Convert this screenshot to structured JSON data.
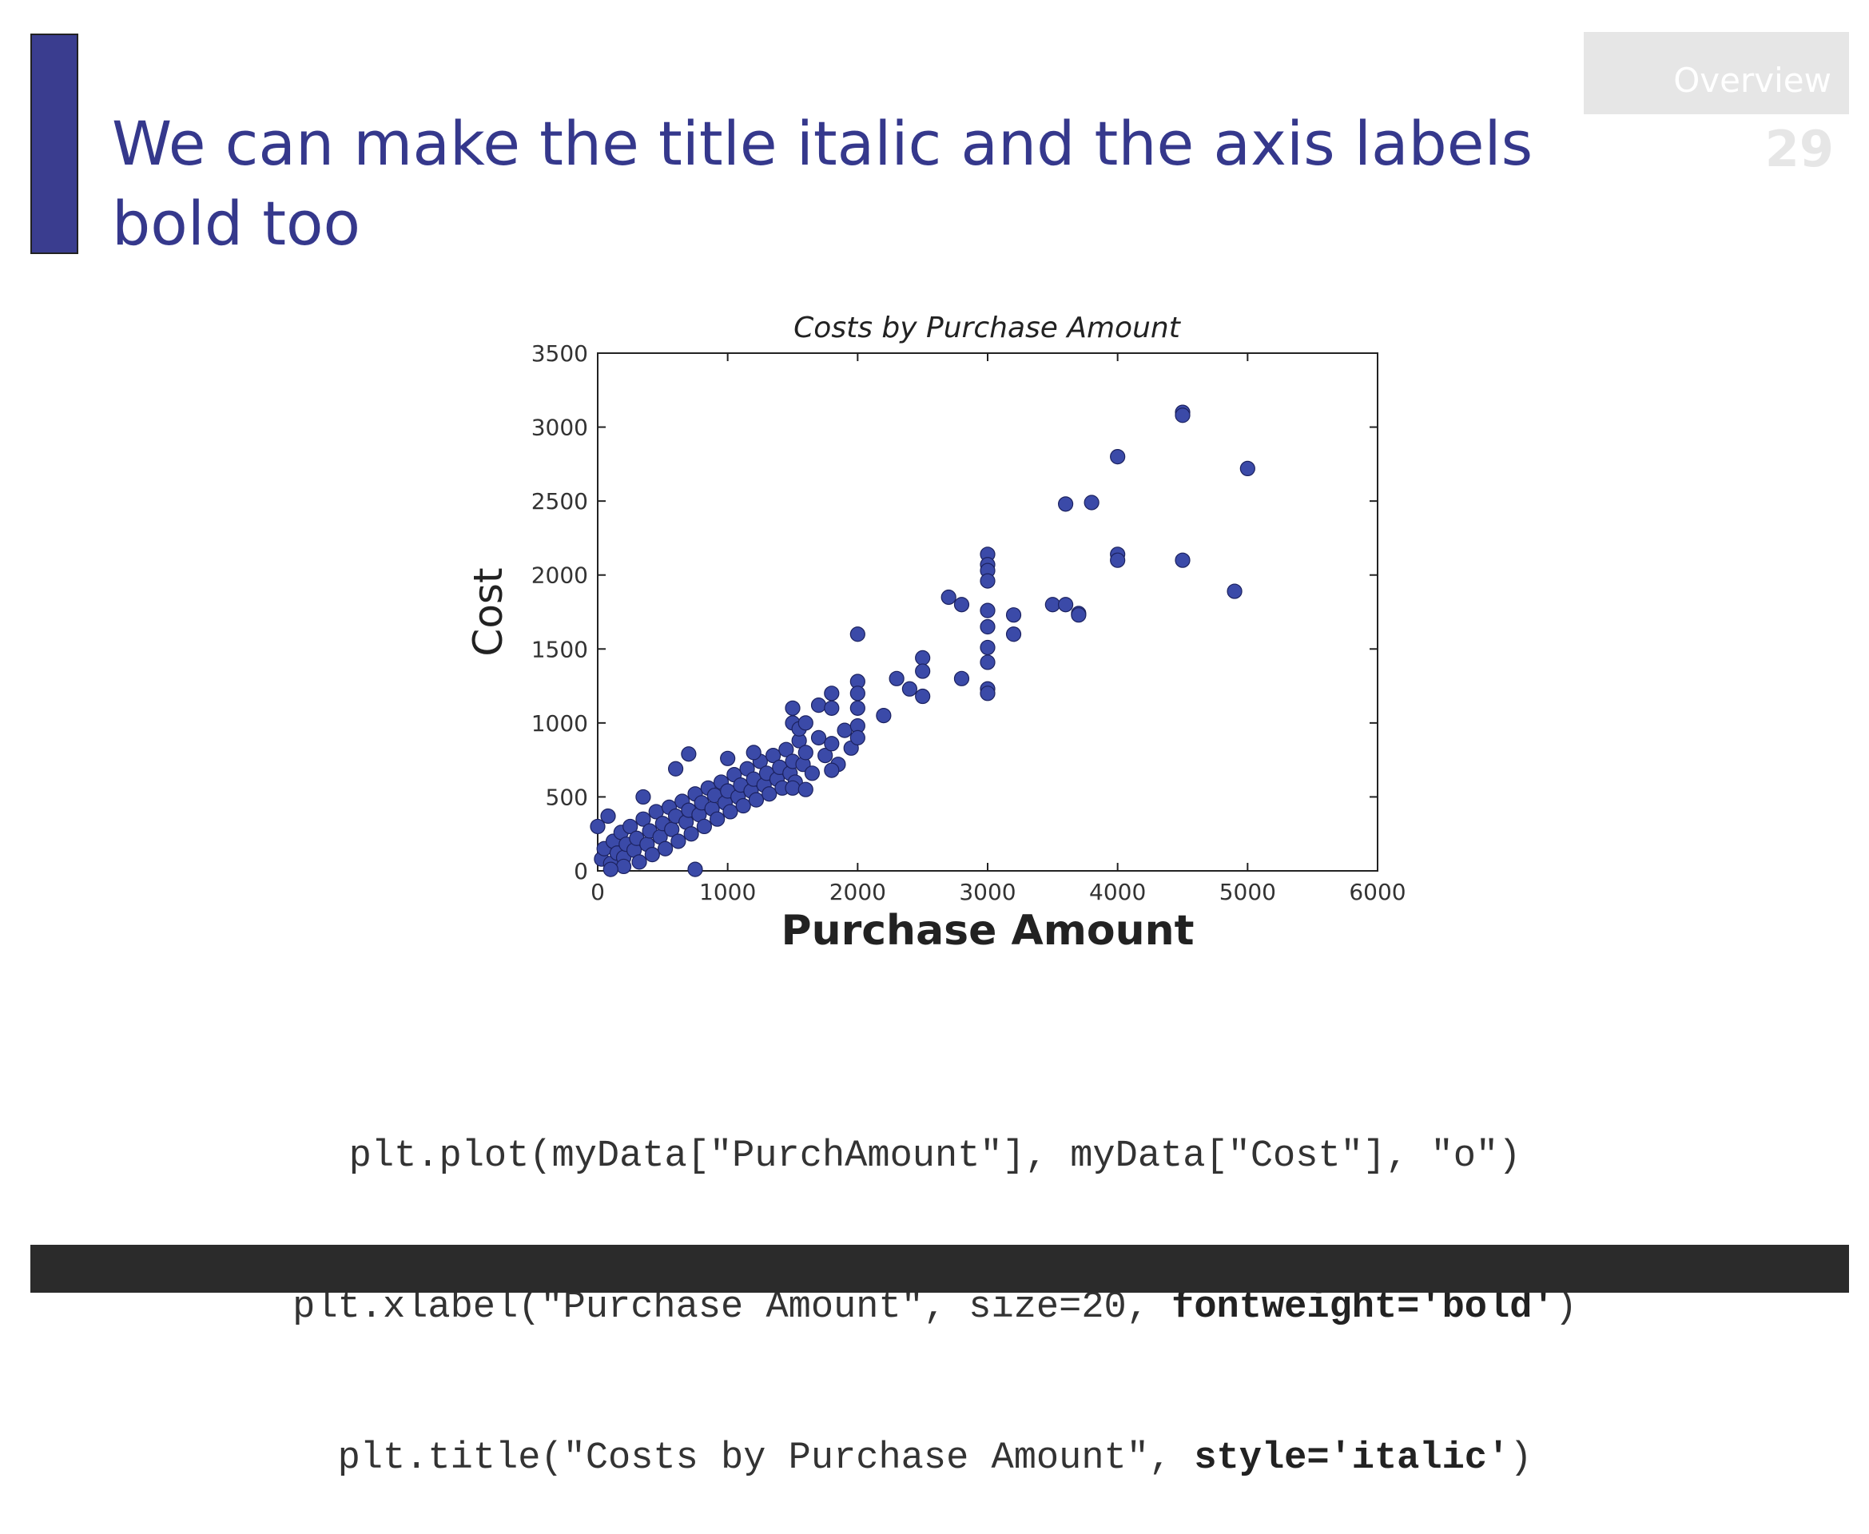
{
  "slide": {
    "title": "We can make the title italic and the axis labels bold too",
    "section_tab": "Overview",
    "page_number": "29"
  },
  "code": {
    "line1": "plt.plot(myData[\"PurchAmount\"], myData[\"Cost\"], \"o\")",
    "line2_plain": "plt.xlabel(\"Purchase Amount\", size=20, ",
    "line2_bold": "fontweight='bold'",
    "line2_end": ")",
    "line3_plain": "plt.title(\"Costs by Purchase Amount\", ",
    "line3_bold": "style='italic'",
    "line3_end": ")"
  },
  "colors": {
    "accent": "#3a3d8f",
    "title_text": "#35388c",
    "marker": "#3b4aa8",
    "footer": "#2b2b2b"
  },
  "chart_data": {
    "type": "scatter",
    "title": "Costs by Purchase Amount",
    "xlabel": "Purchase Amount",
    "ylabel": "Cost",
    "xlim": [
      0,
      6000
    ],
    "ylim": [
      0,
      3500
    ],
    "xticks": [
      0,
      1000,
      2000,
      3000,
      4000,
      5000,
      6000
    ],
    "yticks": [
      0,
      500,
      1000,
      1500,
      2000,
      2500,
      3000,
      3500
    ],
    "grid": false,
    "legend": "none",
    "points": [
      [
        0,
        300
      ],
      [
        80,
        370
      ],
      [
        30,
        80
      ],
      [
        50,
        150
      ],
      [
        100,
        50
      ],
      [
        120,
        200
      ],
      [
        150,
        120
      ],
      [
        180,
        260
      ],
      [
        200,
        90
      ],
      [
        220,
        180
      ],
      [
        250,
        300
      ],
      [
        280,
        140
      ],
      [
        300,
        220
      ],
      [
        320,
        60
      ],
      [
        350,
        350
      ],
      [
        380,
        180
      ],
      [
        400,
        270
      ],
      [
        420,
        110
      ],
      [
        450,
        400
      ],
      [
        480,
        230
      ],
      [
        500,
        320
      ],
      [
        520,
        150
      ],
      [
        550,
        430
      ],
      [
        570,
        280
      ],
      [
        600,
        370
      ],
      [
        620,
        200
      ],
      [
        650,
        470
      ],
      [
        680,
        330
      ],
      [
        700,
        410
      ],
      [
        720,
        250
      ],
      [
        750,
        520
      ],
      [
        780,
        380
      ],
      [
        800,
        460
      ],
      [
        820,
        300
      ],
      [
        850,
        560
      ],
      [
        880,
        420
      ],
      [
        900,
        510
      ],
      [
        920,
        350
      ],
      [
        950,
        600
      ],
      [
        980,
        460
      ],
      [
        1000,
        540
      ],
      [
        1020,
        400
      ],
      [
        1050,
        650
      ],
      [
        1080,
        500
      ],
      [
        1100,
        580
      ],
      [
        1120,
        440
      ],
      [
        1150,
        690
      ],
      [
        1180,
        540
      ],
      [
        1200,
        620
      ],
      [
        1220,
        480
      ],
      [
        1250,
        740
      ],
      [
        1280,
        580
      ],
      [
        1300,
        660
      ],
      [
        1320,
        520
      ],
      [
        1350,
        780
      ],
      [
        1380,
        620
      ],
      [
        1400,
        700
      ],
      [
        1420,
        560
      ],
      [
        1450,
        820
      ],
      [
        1480,
        660
      ],
      [
        1500,
        740
      ],
      [
        1520,
        600
      ],
      [
        1550,
        880
      ],
      [
        1580,
        720
      ],
      [
        1600,
        800
      ],
      [
        1650,
        660
      ],
      [
        1700,
        900
      ],
      [
        1750,
        780
      ],
      [
        1800,
        860
      ],
      [
        1850,
        720
      ],
      [
        1900,
        950
      ],
      [
        1950,
        830
      ],
      [
        350,
        500
      ],
      [
        600,
        690
      ],
      [
        700,
        790
      ],
      [
        1000,
        760
      ],
      [
        1200,
        800
      ],
      [
        1500,
        1100
      ],
      [
        1500,
        1000
      ],
      [
        1550,
        960
      ],
      [
        1600,
        1000
      ],
      [
        1700,
        1120
      ],
      [
        1800,
        1200
      ],
      [
        1800,
        1100
      ],
      [
        1800,
        680
      ],
      [
        2000,
        1600
      ],
      [
        2000,
        1280
      ],
      [
        2000,
        1200
      ],
      [
        2000,
        1100
      ],
      [
        2000,
        980
      ],
      [
        2000,
        900
      ],
      [
        1500,
        560
      ],
      [
        1600,
        550
      ],
      [
        750,
        10
      ],
      [
        200,
        30
      ],
      [
        100,
        10
      ],
      [
        2200,
        1050
      ],
      [
        2300,
        1300
      ],
      [
        2400,
        1230
      ],
      [
        2500,
        1440
      ],
      [
        2500,
        1350
      ],
      [
        2500,
        1180
      ],
      [
        2700,
        1850
      ],
      [
        2800,
        1800
      ],
      [
        2800,
        1300
      ],
      [
        3000,
        2140
      ],
      [
        3000,
        2070
      ],
      [
        3000,
        2030
      ],
      [
        3000,
        1960
      ],
      [
        3000,
        1760
      ],
      [
        3000,
        1650
      ],
      [
        3000,
        1510
      ],
      [
        3000,
        1410
      ],
      [
        3000,
        1230
      ],
      [
        3000,
        1200
      ],
      [
        3200,
        1730
      ],
      [
        3200,
        1600
      ],
      [
        3500,
        1800
      ],
      [
        3600,
        1800
      ],
      [
        3700,
        1740
      ],
      [
        3700,
        1730
      ],
      [
        3600,
        2480
      ],
      [
        3800,
        2490
      ],
      [
        4000,
        2800
      ],
      [
        4000,
        2140
      ],
      [
        4000,
        2100
      ],
      [
        4500,
        3100
      ],
      [
        4500,
        3080
      ],
      [
        4500,
        2100
      ],
      [
        4900,
        1890
      ],
      [
        5000,
        2720
      ]
    ]
  }
}
